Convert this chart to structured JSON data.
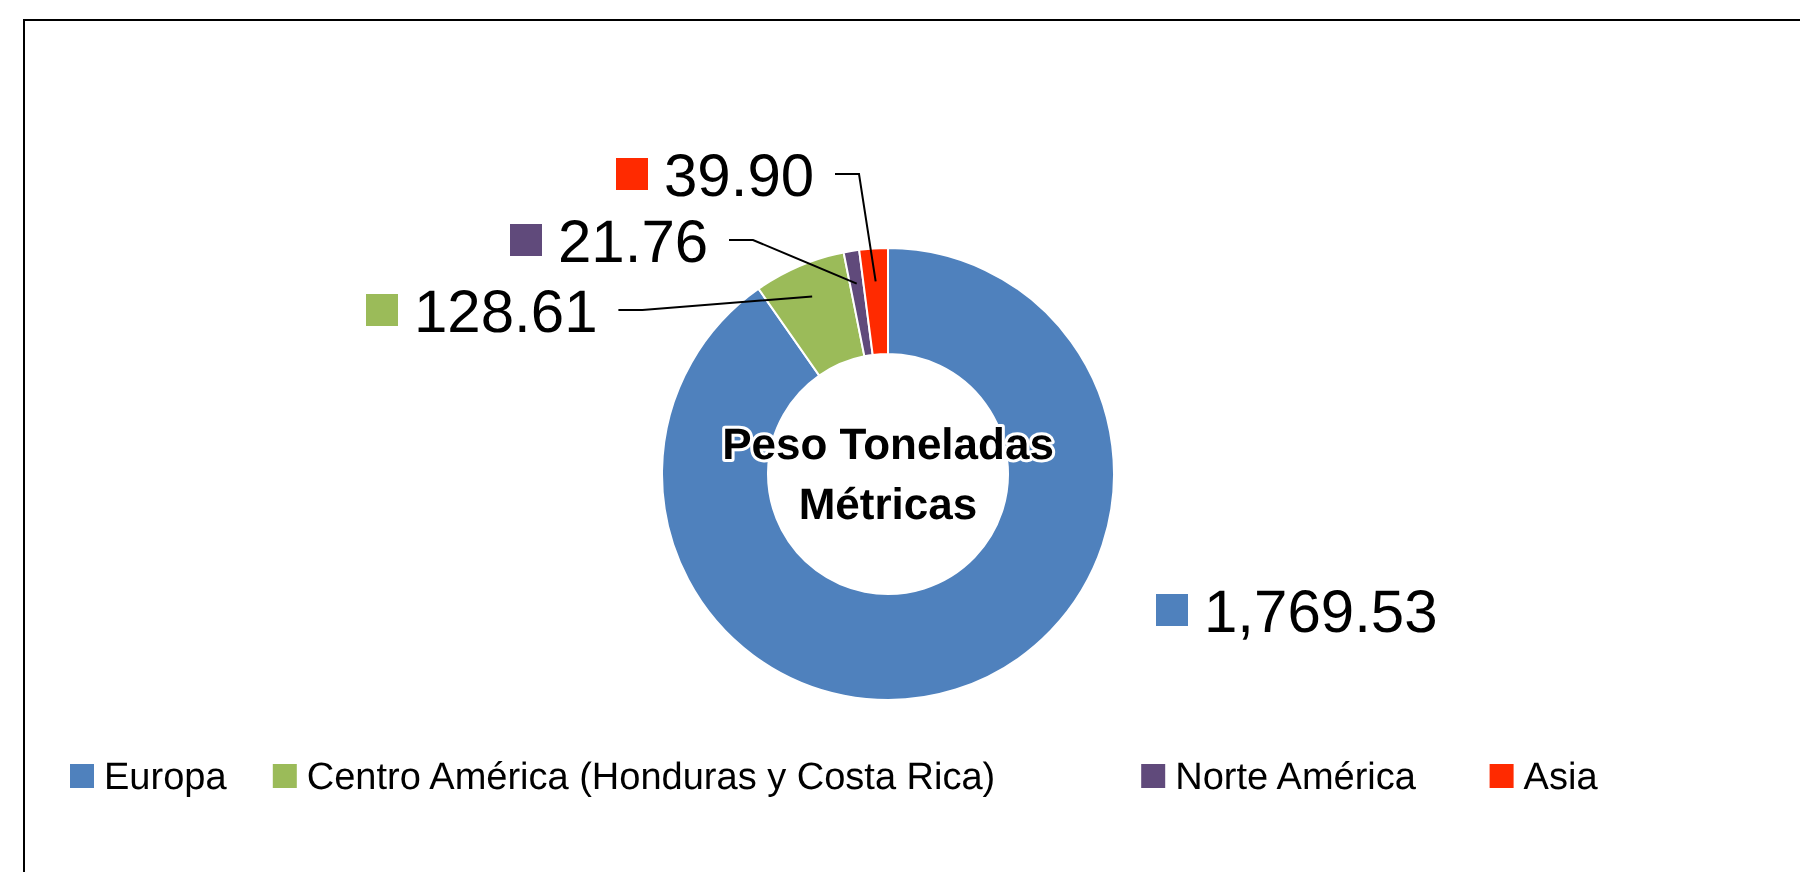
{
  "chart_data": {
    "type": "donut",
    "title": "Peso Toneladas Métricas",
    "categories": [
      "Europa",
      "Centro América (Honduras y Costa Rica)",
      "Norte América",
      "Asia"
    ],
    "values": [
      1769.53,
      128.61,
      21.76,
      39.9
    ],
    "value_labels": [
      "1,769.53",
      "128.61",
      "21.76",
      "39.90"
    ],
    "colors": [
      "#4f81bd",
      "#9bbb59",
      "#604a7b",
      "#ff2a00"
    ],
    "legend": "bottom"
  }
}
